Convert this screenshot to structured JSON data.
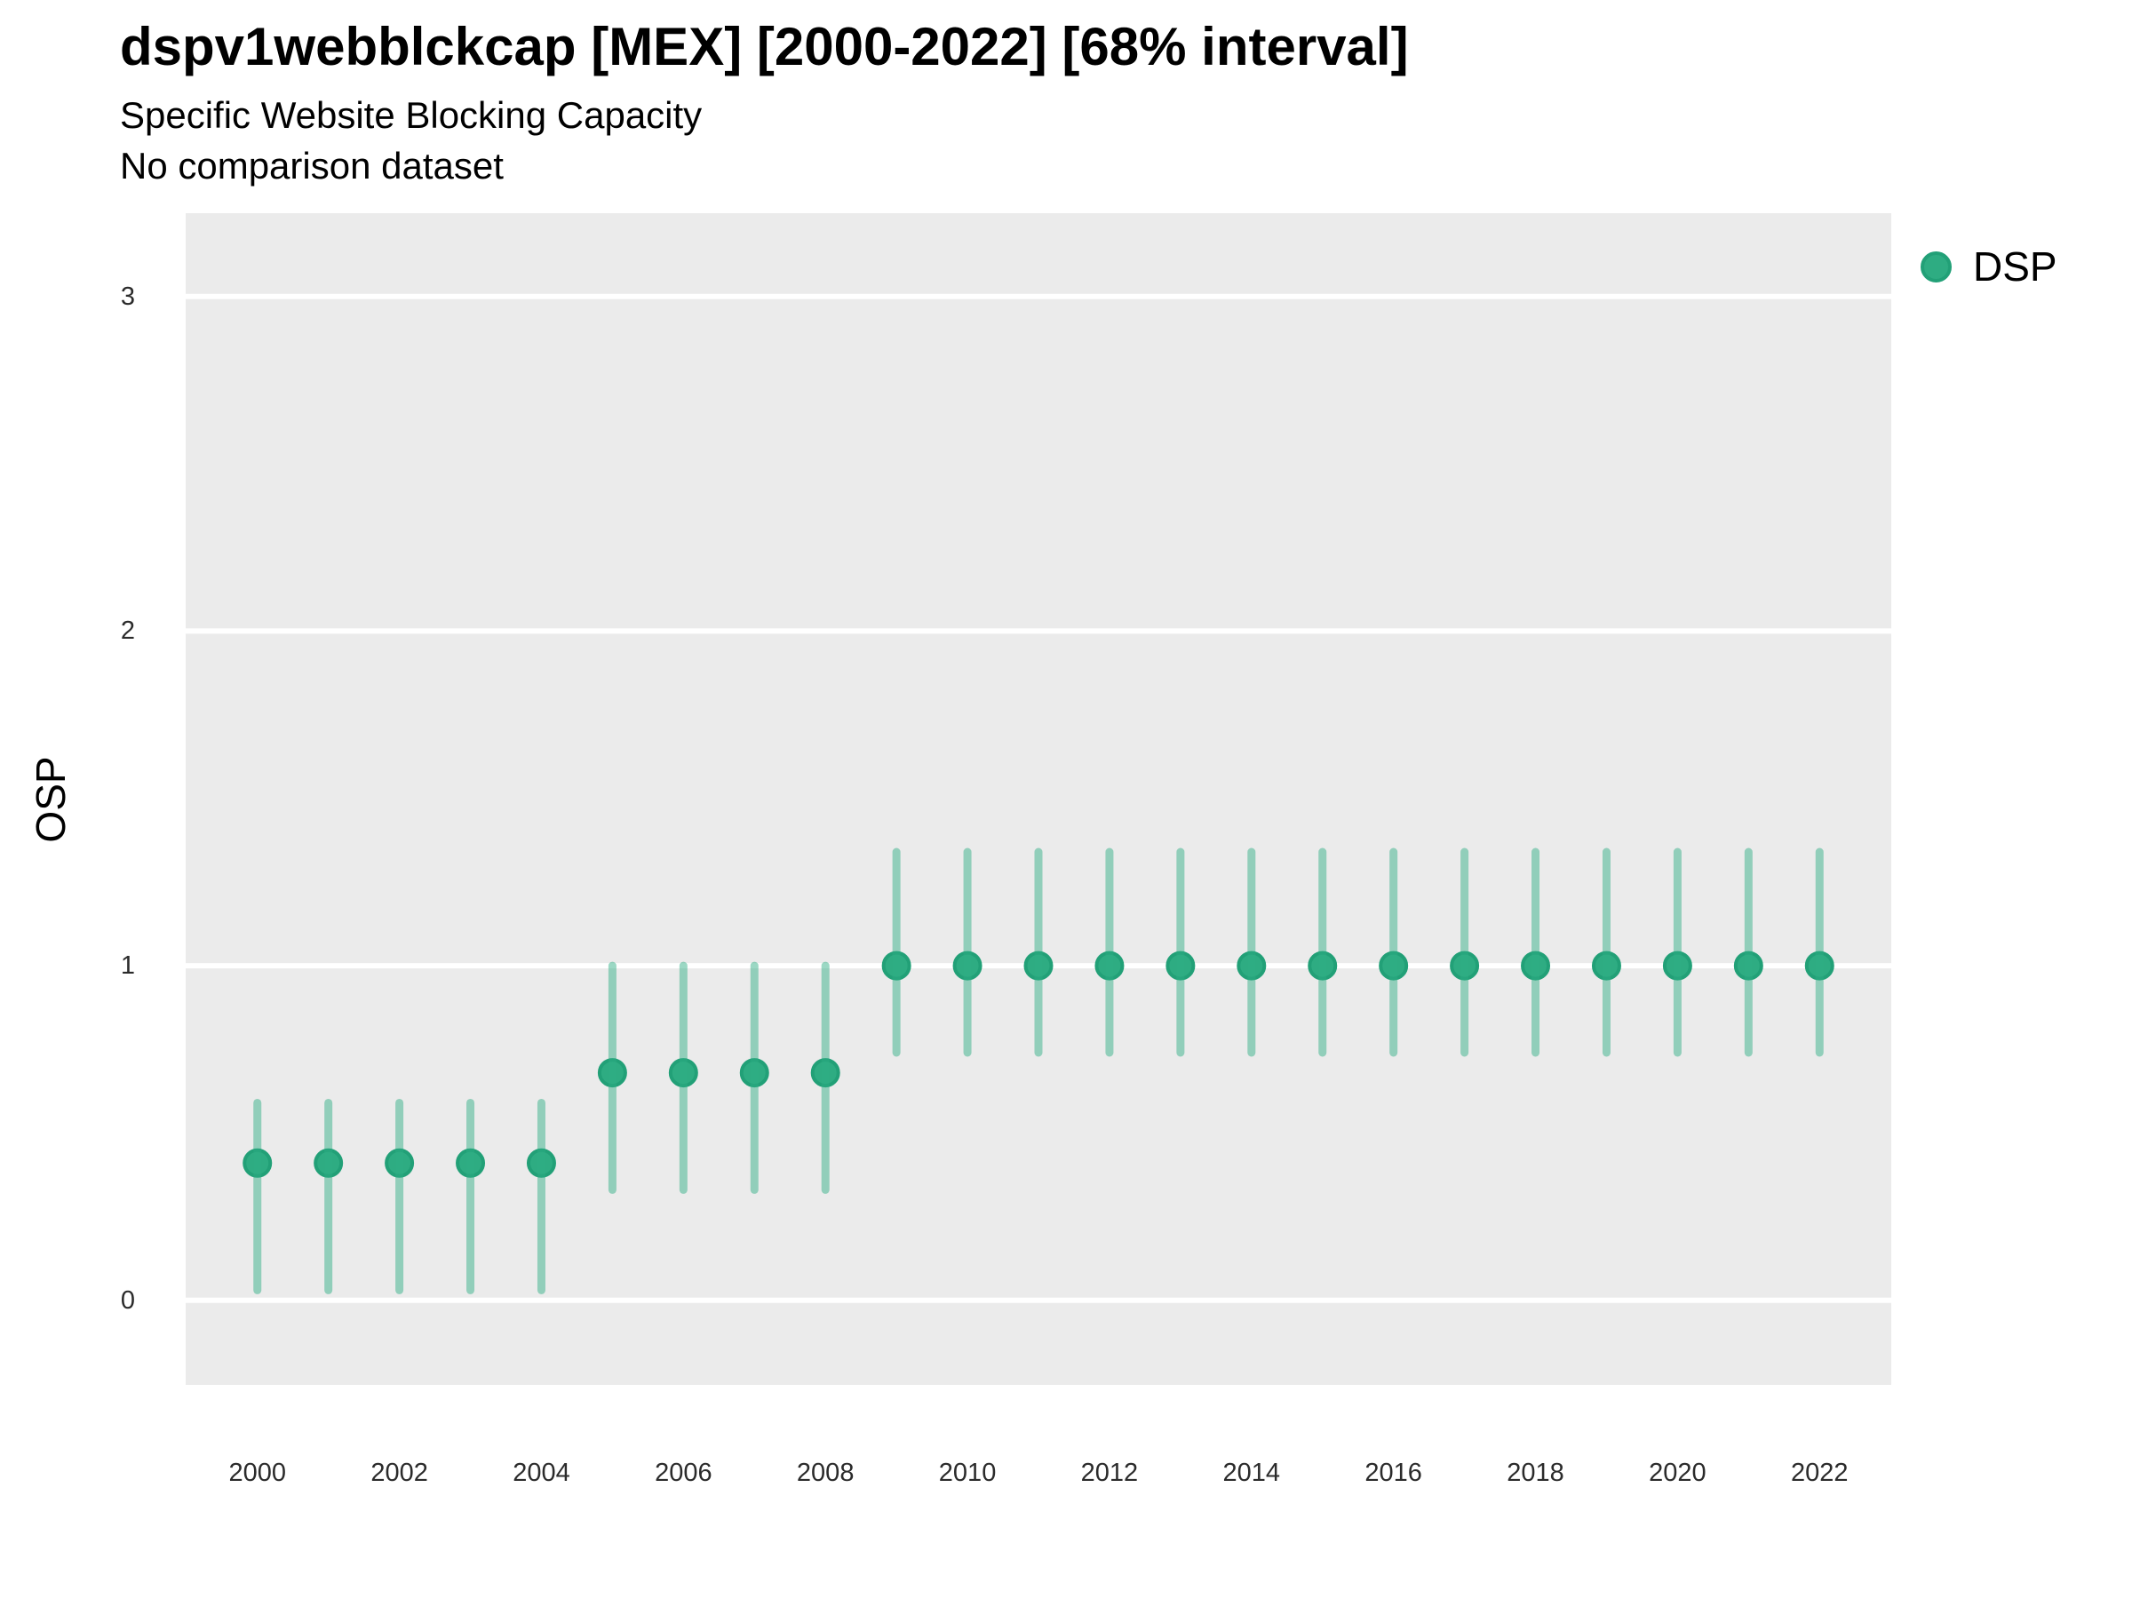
{
  "header": {
    "title": "dspv1webblckcap [MEX] [2000-2022] [68% interval]",
    "subtitle": "Specific Website Blocking Capacity",
    "note": "No comparison dataset"
  },
  "legend": {
    "label": "DSP",
    "position": "right"
  },
  "colors": {
    "point_fill": "#2EAC82",
    "point_stroke": "#22A077",
    "interval_bar": "rgba(47,174,132,0.48)",
    "panel_bg": "#EBEBEB",
    "gridline": "#FFFFFF",
    "title_text": "#000000",
    "tick_text": "#2b2b2b"
  },
  "chart_data": {
    "type": "scatter",
    "title": "dspv1webblckcap [MEX] [2000-2022] [68% interval]",
    "subtitle": "Specific Website Blocking Capacity",
    "note": "No comparison dataset",
    "xlabel": "",
    "ylabel": "OSP",
    "interval": "68%",
    "grid": "major-horizontal-white",
    "legend_position": "right",
    "x_range": [
      1998.99,
      2023.01
    ],
    "y_range": [
      -0.253,
      3.249
    ],
    "xticks": [
      2000,
      2002,
      2004,
      2006,
      2008,
      2010,
      2012,
      2014,
      2016,
      2018,
      2020,
      2022
    ],
    "yticks": [
      0,
      1,
      2,
      3
    ],
    "series": [
      {
        "name": "DSP",
        "years": [
          2000,
          2001,
          2002,
          2003,
          2004,
          2005,
          2006,
          2007,
          2008,
          2009,
          2010,
          2011,
          2012,
          2013,
          2014,
          2015,
          2016,
          2017,
          2018,
          2019,
          2020,
          2021,
          2022
        ],
        "estimate": [
          0.41,
          0.41,
          0.41,
          0.41,
          0.41,
          0.68,
          0.68,
          0.68,
          0.68,
          1.0,
          1.0,
          1.0,
          1.0,
          1.0,
          1.0,
          1.0,
          1.0,
          1.0,
          1.0,
          1.0,
          1.0,
          1.0,
          1.0
        ],
        "lower_68": [
          0.03,
          0.03,
          0.03,
          0.03,
          0.03,
          0.33,
          0.33,
          0.33,
          0.33,
          0.74,
          0.74,
          0.74,
          0.74,
          0.74,
          0.74,
          0.74,
          0.74,
          0.74,
          0.74,
          0.74,
          0.74,
          0.74,
          0.74
        ],
        "upper_68": [
          0.59,
          0.59,
          0.59,
          0.59,
          0.59,
          1.0,
          1.0,
          1.0,
          1.0,
          1.34,
          1.34,
          1.34,
          1.34,
          1.34,
          1.34,
          1.34,
          1.34,
          1.34,
          1.34,
          1.34,
          1.34,
          1.34,
          1.34
        ]
      }
    ]
  }
}
